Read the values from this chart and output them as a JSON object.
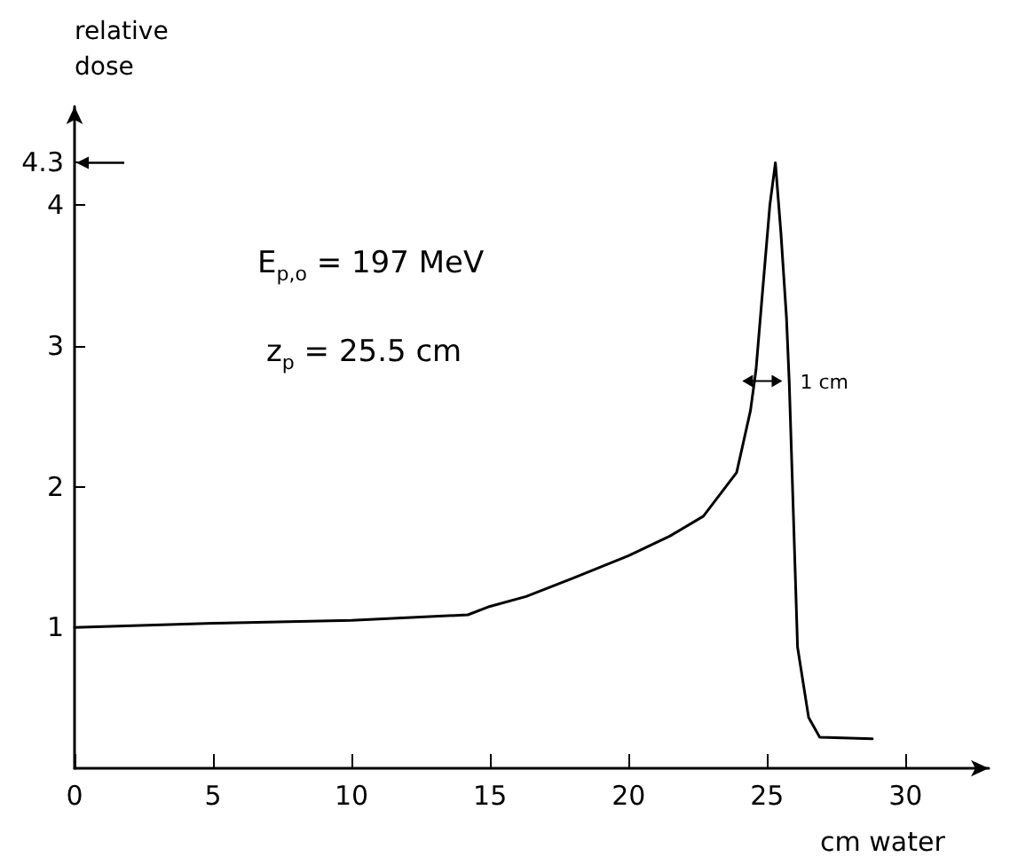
{
  "chart_data": {
    "type": "line",
    "xlabel": "cm water",
    "ylabel": "relative dose",
    "x": [
      0,
      5,
      10,
      14.2,
      15,
      16.3,
      18,
      20,
      21.5,
      22.7,
      23.9,
      24.4,
      24.6,
      24.8,
      25.1,
      25.3,
      25.5,
      25.7,
      25.8,
      26.1,
      26.5,
      26.9,
      28.8
    ],
    "series": [
      {
        "color": "#000000",
        "values": [
          1.0,
          1.03,
          1.05,
          1.09,
          1.15,
          1.22,
          1.35,
          1.51,
          1.65,
          1.79,
          2.1,
          2.54,
          2.83,
          3.3,
          4.0,
          4.3,
          3.8,
          3.2,
          2.74,
          0.86,
          0.36,
          0.22,
          0.21
        ]
      }
    ],
    "xlim": [
      0,
      33
    ],
    "xticks": [
      0,
      5,
      10,
      15,
      20,
      25,
      30
    ],
    "ylim": [
      0,
      4.7
    ],
    "yticks": [
      1,
      2,
      3,
      4,
      4.3
    ],
    "annotations": [
      "E$_{p,o}$ = 197 MeV",
      "z$_{p}$ = 25.5 cm",
      {
        "text": "1 cm",
        "x": 26.0,
        "y": 2.75
      }
    ],
    "grid": false,
    "marker": "none",
    "line_style": "solid"
  }
}
